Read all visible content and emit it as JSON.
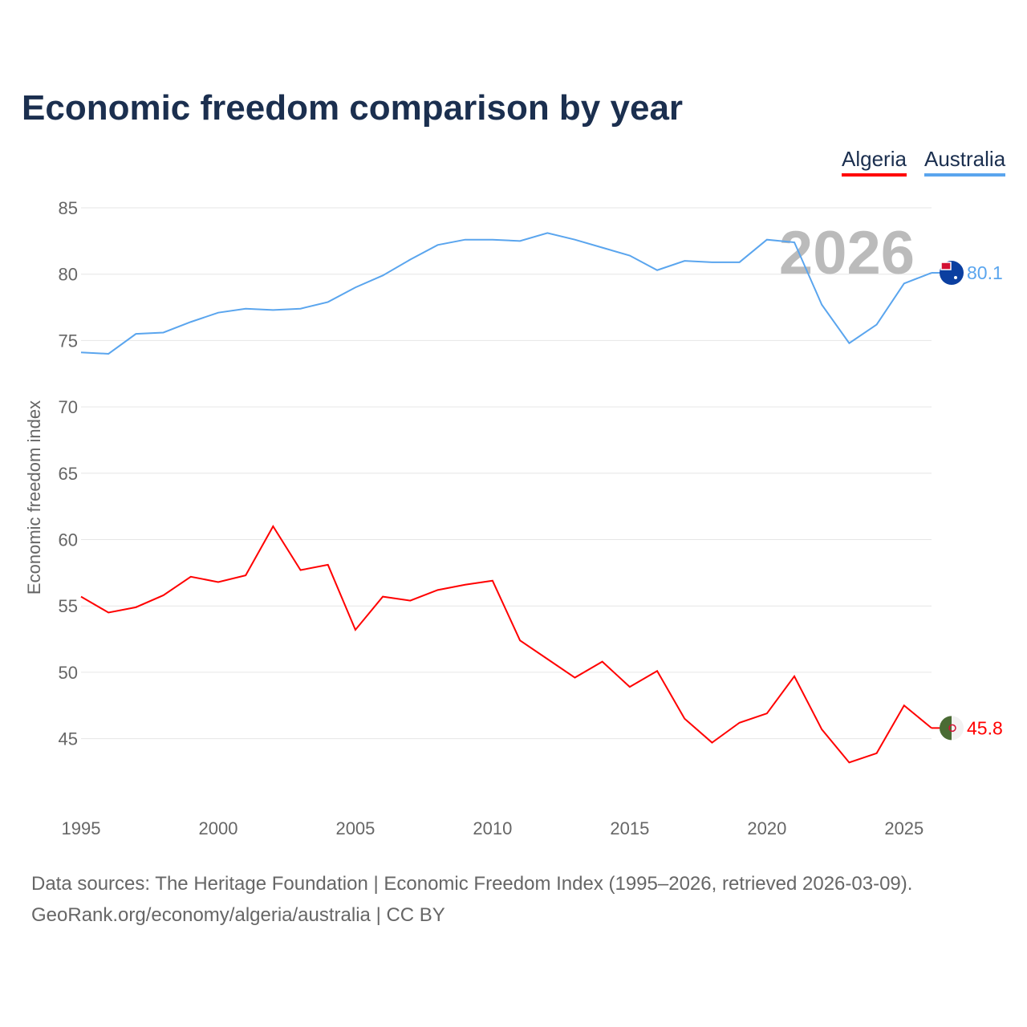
{
  "chart_data": {
    "type": "line",
    "title": "Economic freedom comparison by year",
    "ylabel": "Economic freedom index",
    "xlabel": "",
    "watermark": "2026",
    "xlim": [
      1995,
      2026
    ],
    "ylim": [
      40,
      85
    ],
    "yticks": [
      45,
      50,
      55,
      60,
      65,
      70,
      75,
      80,
      85
    ],
    "xticks": [
      1995,
      2000,
      2005,
      2010,
      2015,
      2020,
      2025
    ],
    "grid": true,
    "legend_position": "top-right",
    "x": [
      1995,
      1996,
      1997,
      1998,
      1999,
      2000,
      2001,
      2002,
      2003,
      2004,
      2005,
      2006,
      2007,
      2008,
      2009,
      2010,
      2011,
      2012,
      2013,
      2014,
      2015,
      2016,
      2017,
      2018,
      2019,
      2020,
      2021,
      2022,
      2023,
      2024,
      2025,
      2026
    ],
    "series": [
      {
        "name": "Algeria",
        "color": "#ff0000",
        "end_label": "45.8",
        "values": [
          55.7,
          54.5,
          54.9,
          55.8,
          57.2,
          56.8,
          57.3,
          61.0,
          57.7,
          58.1,
          53.2,
          55.7,
          55.4,
          56.2,
          56.6,
          56.9,
          52.4,
          51.0,
          49.6,
          50.8,
          48.9,
          50.1,
          46.5,
          44.7,
          46.2,
          46.9,
          49.7,
          45.7,
          43.2,
          43.9,
          47.5,
          45.8
        ]
      },
      {
        "name": "Australia",
        "color": "#5aa5ee",
        "end_label": "80.1",
        "values": [
          74.1,
          74.0,
          75.5,
          75.6,
          76.4,
          77.1,
          77.4,
          77.3,
          77.4,
          77.9,
          79.0,
          79.9,
          81.1,
          82.2,
          82.6,
          82.6,
          82.5,
          83.1,
          82.6,
          82.0,
          81.4,
          80.3,
          81.0,
          80.9,
          80.9,
          82.6,
          82.4,
          77.7,
          74.8,
          76.2,
          79.3,
          80.1
        ]
      }
    ]
  },
  "footer": {
    "line1": "Data sources: The Heritage Foundation | Economic Freedom Index (1995–2026, retrieved 2026-03-09).",
    "line2": "GeoRank.org/economy/algeria/australia | CC BY"
  }
}
